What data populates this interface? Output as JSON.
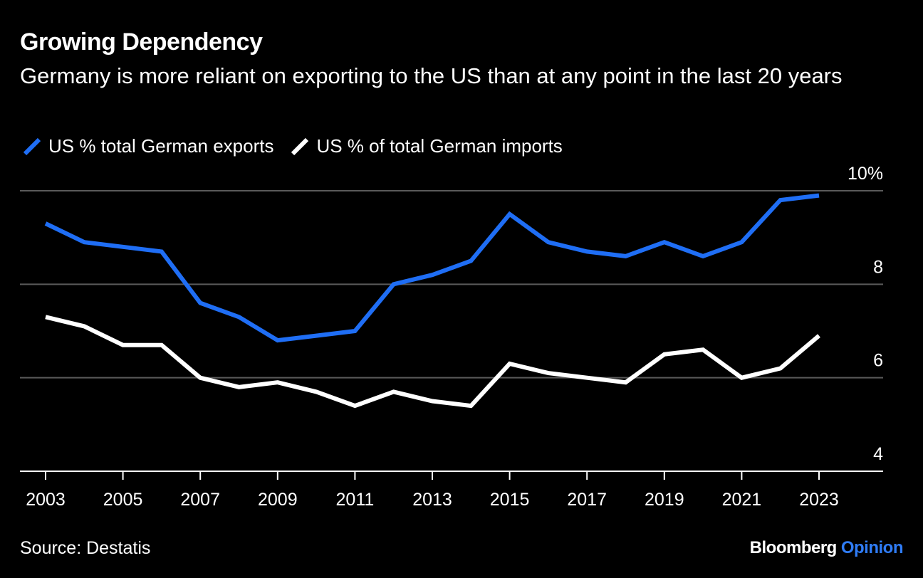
{
  "header": {
    "title": "Growing Dependency",
    "subtitle": "Germany is more reliant on exporting to the US than at any point in the last 20 years"
  },
  "footer": {
    "source": "Source: Destatis",
    "brand_primary": "Bloomberg",
    "brand_secondary": "Opinion"
  },
  "colors": {
    "background": "#000000",
    "exports": "#1f6ef5",
    "imports": "#ffffff",
    "grid": "#5a5a5a",
    "brand_accent": "#2f7cf6"
  },
  "chart_data": {
    "type": "line",
    "title": "Growing Dependency",
    "xlabel": "",
    "ylabel": "",
    "x": [
      2003,
      2004,
      2005,
      2006,
      2007,
      2008,
      2009,
      2010,
      2011,
      2012,
      2013,
      2014,
      2015,
      2016,
      2017,
      2018,
      2019,
      2020,
      2021,
      2022,
      2023
    ],
    "x_ticks": [
      "2003",
      "2005",
      "2007",
      "2009",
      "2011",
      "2013",
      "2015",
      "2017",
      "2019",
      "2021",
      "2023"
    ],
    "ylim": [
      4,
      10
    ],
    "y_ticks": [
      "4",
      "6",
      "8",
      "10%"
    ],
    "grid": true,
    "y_axis_position": "right",
    "legend_position": "top-left",
    "series": [
      {
        "name": "US % total German exports",
        "color": "#1f6ef5",
        "values": [
          9.3,
          8.9,
          8.8,
          8.7,
          7.6,
          7.3,
          6.8,
          6.9,
          7.0,
          8.0,
          8.2,
          8.5,
          9.5,
          8.9,
          8.7,
          8.6,
          8.9,
          8.6,
          8.9,
          9.8,
          9.9
        ]
      },
      {
        "name": "US % of total German imports",
        "color": "#ffffff",
        "values": [
          7.3,
          7.1,
          6.7,
          6.7,
          6.0,
          5.8,
          5.9,
          5.7,
          5.4,
          5.7,
          5.5,
          5.4,
          6.3,
          6.1,
          6.0,
          5.9,
          6.5,
          6.6,
          6.0,
          6.2,
          6.9
        ]
      }
    ]
  }
}
